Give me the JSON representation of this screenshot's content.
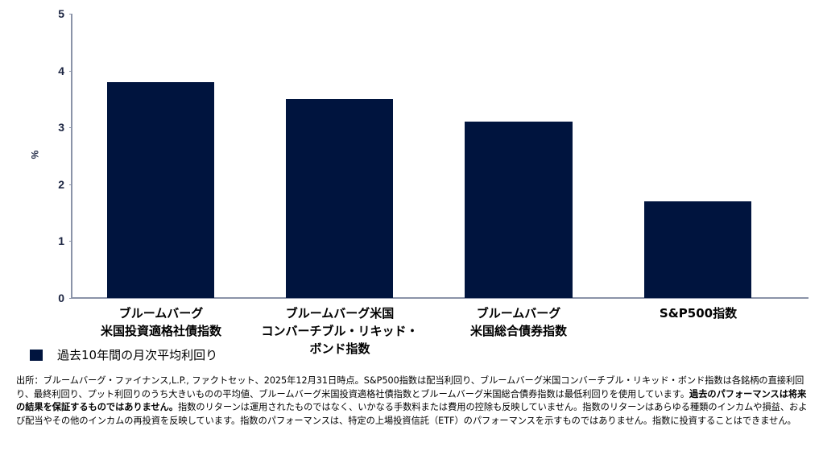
{
  "chart_data": {
    "type": "bar",
    "title": "",
    "xlabel": "",
    "ylabel": "%",
    "ylim": [
      0,
      5
    ],
    "yticks": [
      0,
      1,
      2,
      3,
      4,
      5
    ],
    "grid": false,
    "legend_position": "bottom-left",
    "categories": [
      "ブルームバーグ 米国投資適格社債指数",
      "ブルームバーグ米国 コンバーチブル・リキッド・ボンド指数",
      "ブルームバーグ 米国総合債券指数",
      "S&P500指数"
    ],
    "series": [
      {
        "name": "過去10年間の月次平均利回り",
        "color": "#00143e",
        "values": [
          3.8,
          3.5,
          3.1,
          1.7
        ]
      }
    ]
  },
  "axis": {
    "y_title": "%",
    "y_ticks": [
      "0",
      "1",
      "2",
      "3",
      "4",
      "5"
    ]
  },
  "categories": [
    {
      "line1": "ブルームバーグ",
      "line2": "米国投資適格社債指数",
      "line3": ""
    },
    {
      "line1": "ブルームバーグ米国",
      "line2": "コンバーチブル・リキッド・",
      "line3": "ボンド指数"
    },
    {
      "line1": "ブルームバーグ",
      "line2": "米国総合債券指数",
      "line3": ""
    },
    {
      "line1": "S&P500指数",
      "line2": "",
      "line3": ""
    }
  ],
  "legend": {
    "label": "過去10年間の月次平均利回り",
    "color": "#00143e"
  },
  "footnote": {
    "part1": "出所：ブルームバーグ・ファイナンス,L.P., ファクトセット、2025年12月31日時点。S&P500指数は配当利回り、ブルームバーグ米国コンバーチブル・リキッド・ボンド指数は各銘柄の直接利回り、最終利回り、プット利回りのうち大きいものの平均値、ブルームバーグ米国投資適格社債指数とブルームバーグ米国総合債券指数は最低利回りを使用しています。",
    "bold": "過去のパフォーマンスは将来の結果を保証するものではありません。",
    "part2": "指数のリターンは運用されたものではなく、いかなる手数料または費用の控除も反映していません。指数のリターンはあらゆる種類のインカムや損益、および配当やその他のインカムの再投資を反映しています。指数のパフォーマンスは、特定の上場投資信託（ETF）のパフォーマンスを示すものではありません。指数に投資することはできません。"
  }
}
